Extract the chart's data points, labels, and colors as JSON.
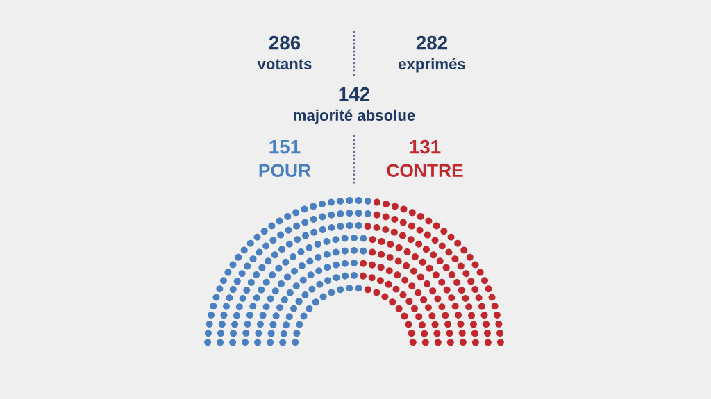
{
  "chart_data": {
    "type": "other",
    "annotations": [
      "286\nvotants",
      "282\nexprimés",
      "142\nmajorité absolue"
    ],
    "categories": [
      "POUR",
      "CONTRE"
    ],
    "values": [
      151,
      131
    ],
    "colors": [
      "#4a7fc1",
      "#c1272d"
    ],
    "data_labels": true
  }
}
